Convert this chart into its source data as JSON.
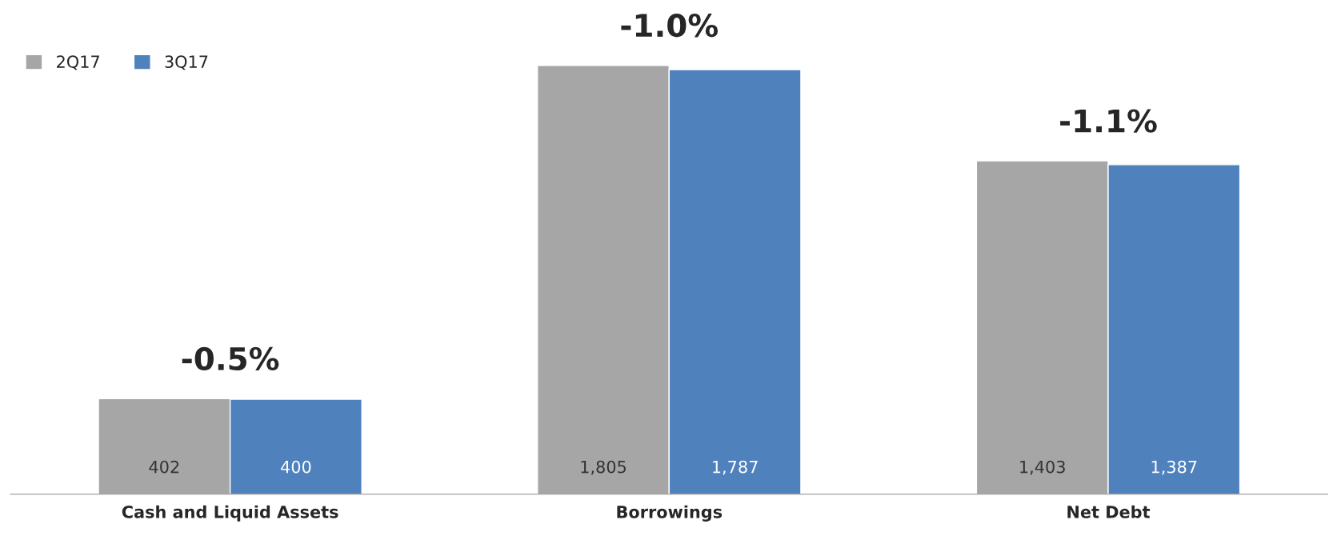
{
  "chart_data": {
    "type": "bar",
    "categories": [
      "Cash and Liquid Assets",
      "Borrowings",
      "Net Debt"
    ],
    "series": [
      {
        "name": "2Q17",
        "color": "#a6a6a6",
        "values": [
          402,
          1805,
          1403
        ],
        "value_labels": [
          "402",
          "1,805",
          "1,403"
        ]
      },
      {
        "name": "3Q17",
        "color": "#4f81bd",
        "values": [
          400,
          1787,
          1387
        ],
        "value_labels": [
          "400",
          "1,787",
          "1,387"
        ]
      }
    ],
    "annotations": [
      {
        "text": "-0.5%",
        "x": "Cash and Liquid Assets",
        "y": 402
      },
      {
        "text": "-1.0%",
        "x": "Borrowings",
        "y": 1805
      },
      {
        "text": "-1.1%",
        "x": "Net Debt",
        "y": 1403
      }
    ],
    "legend": "top left",
    "grid": false
  }
}
